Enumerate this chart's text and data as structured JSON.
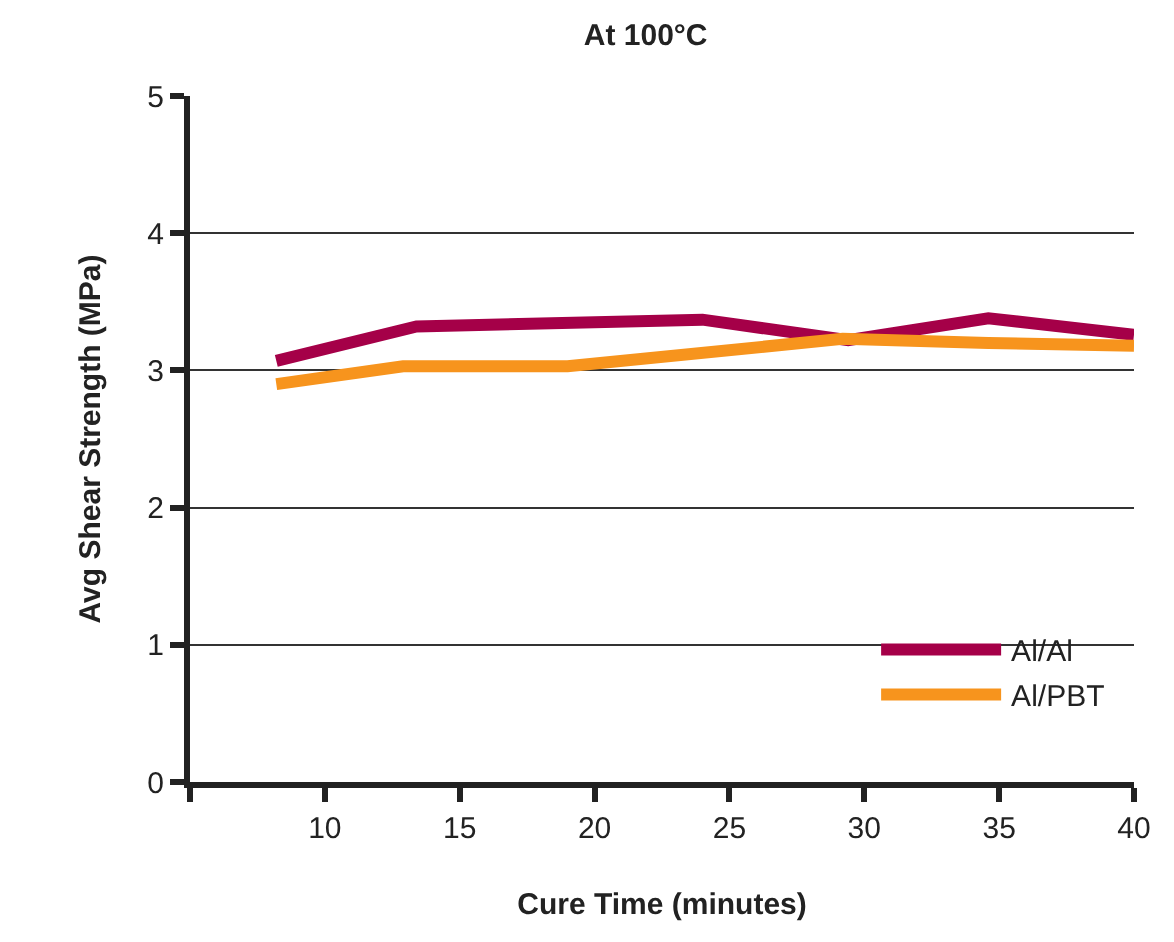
{
  "chart_data": {
    "type": "line",
    "title": "At 100°C",
    "xlabel": "Cure Time (minutes)",
    "ylabel": "Avg Shear Strength (MPa)",
    "xlim": [
      5,
      40
    ],
    "xticks": [
      {
        "value": 5,
        "label": null
      },
      10,
      15,
      20,
      25,
      30,
      35,
      40
    ],
    "ylim": [
      0,
      5
    ],
    "yticks": [
      0,
      1,
      2,
      3,
      4,
      5
    ],
    "grid": "y",
    "legend": "bottom right",
    "marker": "none",
    "line_style": "solid",
    "series": [
      {
        "name": "Al/Al",
        "color": "#a50048",
        "x": [
          8.2,
          13.4,
          24.0,
          29.4,
          34.6,
          40
        ],
        "values": [
          3.07,
          3.32,
          3.37,
          3.22,
          3.38,
          3.26
        ]
      },
      {
        "name": "Al/PBT",
        "color": "#f7941d",
        "x": [
          8.2,
          12.9,
          19.0,
          29.2,
          34.6,
          40
        ],
        "values": [
          2.9,
          3.03,
          3.03,
          3.23,
          3.2,
          3.18
        ]
      }
    ]
  }
}
